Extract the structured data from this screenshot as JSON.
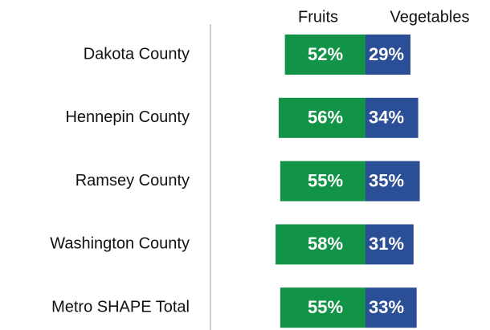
{
  "chart_data": {
    "type": "diverging-bar",
    "categories": [
      "Dakota County",
      "Hennepin County",
      "Ramsey County",
      "Washington County",
      "Metro SHAPE Total"
    ],
    "series": [
      {
        "name": "Fruits",
        "color": "#119447",
        "values": [
          52,
          56,
          55,
          58,
          55
        ],
        "value_labels": [
          "52%",
          "56%",
          "55%",
          "58%",
          "55%"
        ]
      },
      {
        "name": "Vegetables",
        "color": "#2b4f97",
        "values": [
          29,
          34,
          35,
          31,
          33
        ],
        "value_labels": [
          "29%",
          "34%",
          "35%",
          "31%",
          "33%"
        ]
      }
    ]
  }
}
